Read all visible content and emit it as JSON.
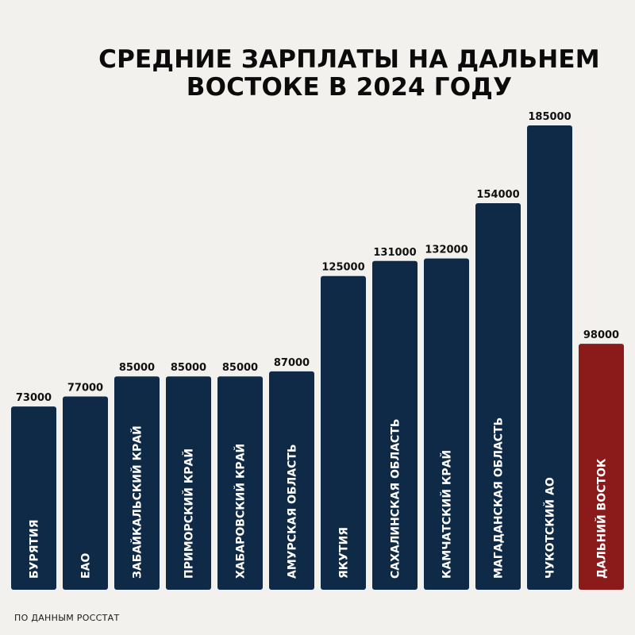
{
  "title_lines": [
    "СРЕДНИЕ ЗАРПЛАТЫ НА ДАЛЬНЕМ",
    "ВОСТОКЕ В 2024 ГОДУ"
  ],
  "source": "ПО ДАННЫМ РОССТАТ",
  "colors": {
    "bar": "#0f2a47",
    "highlight": "#8b1a1a",
    "background": "#f2f1ed",
    "value_text": "#111111",
    "bar_text": "#ffffff"
  },
  "chart_data": {
    "type": "bar",
    "title": "СРЕДНИЕ ЗАРПЛАТЫ НА ДАЛЬНЕМ ВОСТОКЕ В 2024 ГОДУ",
    "categories": [
      "БУРЯТИЯ",
      "ЕАО",
      "ЗАБАЙКАЛЬСКИЙ КРАЙ",
      "ПРИМОРСКИЙ КРАЙ",
      "ХАБАРОВСКИЙ  КРАЙ",
      "АМУРСКАЯ ОБЛАСТЬ",
      "ЯКУТИЯ",
      "САХАЛИНСКАЯ ОБЛАСТЬ",
      "КАМЧАТСКИЙ КРАЙ",
      "МАГАДАНСКАЯ ОБЛАСТЬ",
      "ЧУКОТСКИЙ АО",
      "ДАЛЬНИЙ ВОСТОК"
    ],
    "values": [
      73000,
      77000,
      85000,
      85000,
      85000,
      87000,
      125000,
      131000,
      132000,
      154000,
      185000,
      98000
    ],
    "value_labels": [
      "73000",
      "77000",
      "85000",
      "85000",
      "85000",
      "87000",
      "125000",
      "131000",
      "132000",
      "154000",
      "185000",
      "98000"
    ],
    "highlighted": [
      "ДАЛЬНИЙ ВОСТОК"
    ],
    "xlabel": "",
    "ylabel": "",
    "ylim": [
      0,
      185000
    ],
    "grid": false,
    "legend": "none"
  }
}
